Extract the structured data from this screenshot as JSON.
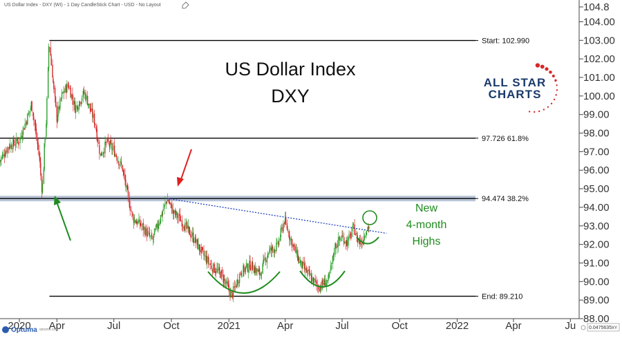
{
  "header": {
    "title": "US Dollar Index - DXY (WI) - 1 Day CandleStick Chart - USD - No Layout"
  },
  "chart_data": {
    "type": "candlestick",
    "title": "US Dollar Index",
    "subtitle": "DXY",
    "y_axis": {
      "ticks": [
        "104.8",
        "104.00",
        "103.00",
        "102.00",
        "101.00",
        "100.00",
        "99.00",
        "98.00",
        "97.00",
        "96.00",
        "95.00",
        "94.00",
        "93.00",
        "92.00",
        "91.00",
        "90.00",
        "89.00",
        "88.00"
      ],
      "ylim": [
        88.0,
        104.8
      ],
      "side": "right",
      "value_badge": "0.0475635",
      "badge_suffix": "XY"
    },
    "x_axis": {
      "ticks": [
        {
          "label": "2020",
          "date": "2020-02-01"
        },
        {
          "label": "Apr",
          "date": "2020-04-01"
        },
        {
          "label": "Jul",
          "date": "2020-07-01"
        },
        {
          "label": "Oct",
          "date": "2020-10-01"
        },
        {
          "label": "2021",
          "date": "2021-01-01"
        },
        {
          "label": "Apr",
          "date": "2021-04-01"
        },
        {
          "label": "Jul",
          "date": "2021-07-01"
        },
        {
          "label": "Oct",
          "date": "2021-10-01"
        },
        {
          "label": "2022",
          "date": "2022-01-01"
        },
        {
          "label": "Apr",
          "date": "2022-04-01"
        },
        {
          "label": "Ju",
          "date": "2022-07-01"
        }
      ],
      "range": [
        "2020-01-01",
        "2022-07-15"
      ]
    },
    "series_path": [
      [
        "2020-01-01",
        96.5
      ],
      [
        "2020-01-15",
        97.3
      ],
      [
        "2020-02-01",
        97.6
      ],
      [
        "2020-02-15",
        98.9
      ],
      [
        "2020-02-21",
        99.6
      ],
      [
        "2020-03-05",
        96.5
      ],
      [
        "2020-03-09",
        94.7
      ],
      [
        "2020-03-12",
        97.0
      ],
      [
        "2020-03-16",
        99.0
      ],
      [
        "2020-03-19",
        102.5
      ],
      [
        "2020-03-20",
        102.99
      ],
      [
        "2020-03-25",
        101.2
      ],
      [
        "2020-04-01",
        98.8
      ],
      [
        "2020-04-10",
        100.1
      ],
      [
        "2020-04-20",
        100.6
      ],
      [
        "2020-05-01",
        99.3
      ],
      [
        "2020-05-15",
        100.2
      ],
      [
        "2020-06-01",
        98.6
      ],
      [
        "2020-06-10",
        96.8
      ],
      [
        "2020-06-20",
        97.5
      ],
      [
        "2020-07-01",
        97.1
      ],
      [
        "2020-07-15",
        96.1
      ],
      [
        "2020-07-25",
        94.4
      ],
      [
        "2020-08-01",
        93.4
      ],
      [
        "2020-08-15",
        93.0
      ],
      [
        "2020-09-01",
        92.2
      ],
      [
        "2020-09-10",
        93.1
      ],
      [
        "2020-09-25",
        94.474
      ],
      [
        "2020-10-05",
        93.7
      ],
      [
        "2020-10-15",
        93.4
      ],
      [
        "2020-10-25",
        92.9
      ],
      [
        "2020-11-05",
        92.4
      ],
      [
        "2020-11-20",
        91.5
      ],
      [
        "2020-12-05",
        90.8
      ],
      [
        "2020-12-20",
        90.4
      ],
      [
        "2021-01-06",
        89.21
      ],
      [
        "2021-01-20",
        90.5
      ],
      [
        "2021-02-05",
        90.9
      ],
      [
        "2021-02-20",
        90.4
      ],
      [
        "2021-03-05",
        91.6
      ],
      [
        "2021-03-20",
        91.9
      ],
      [
        "2021-03-31",
        93.3
      ],
      [
        "2021-04-10",
        92.3
      ],
      [
        "2021-04-25",
        91.0
      ],
      [
        "2021-05-10",
        90.3
      ],
      [
        "2021-05-25",
        89.7
      ],
      [
        "2021-06-10",
        90.1
      ],
      [
        "2021-06-20",
        91.9
      ],
      [
        "2021-07-01",
        92.4
      ],
      [
        "2021-07-10",
        92.1
      ],
      [
        "2021-07-20",
        92.9
      ],
      [
        "2021-07-25",
        92.3
      ],
      [
        "2021-08-01",
        92.1
      ],
      [
        "2021-08-10",
        92.9
      ],
      [
        "2021-08-15",
        93.0
      ]
    ],
    "levels": [
      {
        "value": 102.99,
        "label": "Start:   102.990",
        "x_from": "2020-03-20"
      },
      {
        "value": 97.726,
        "label": "97.726   61.8%",
        "x_from": "2020-01-01"
      },
      {
        "value": 94.474,
        "label": "94.474   38.2%",
        "x_from": "2020-01-01",
        "band": true
      },
      {
        "value": 89.21,
        "label": "End:   89.210",
        "x_from": "2020-03-20"
      }
    ],
    "trendline": {
      "from": [
        "2020-09-25",
        94.474
      ],
      "to": [
        "2021-09-10",
        92.6
      ]
    },
    "annotations": {
      "note_lines": [
        "New",
        "4-month",
        "Highs"
      ],
      "red_arrow_target": [
        "2020-09-25",
        94.474
      ],
      "green_arrow_target": [
        "2020-03-09",
        94.4
      ],
      "highlight_circle": [
        "2021-08-15",
        93.0
      ]
    },
    "grid": false,
    "legend": "none"
  },
  "logo": {
    "line1": "ALL STAR",
    "line2": "CHARTS",
    "primary_color": "#1a3a6b",
    "accent_color": "#d62828"
  },
  "footer": {
    "brand": "Optuma",
    "brand_url": "optuma.com"
  },
  "colors": {
    "up_candle": "#2ca02c",
    "down_candle": "#d62728",
    "trendline": "#1f3fbf",
    "annotation": "#1e8c1e",
    "arrow_red": "#e02020",
    "level_band": "#b8c4d6"
  }
}
